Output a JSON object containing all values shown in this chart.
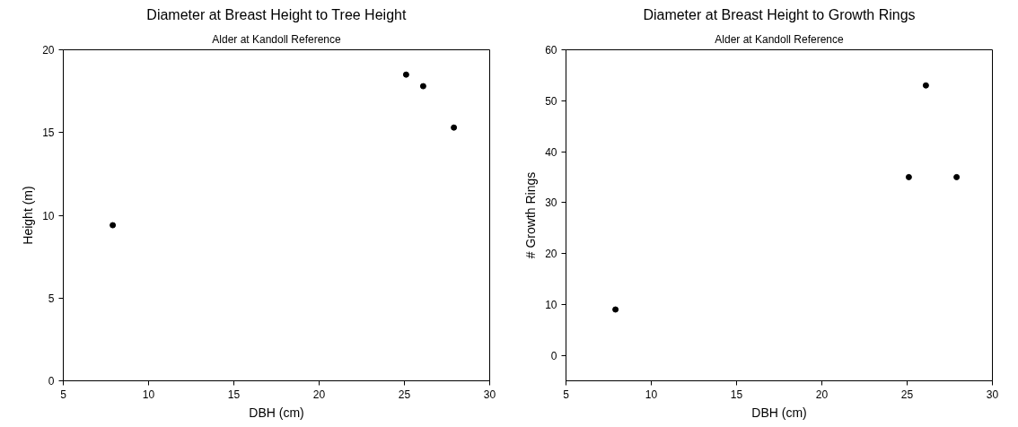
{
  "chart_data": [
    {
      "type": "scatter",
      "title": "Diameter at Breast Height to Tree Height",
      "subtitle": "Alder at Kandoll Reference",
      "xlabel": "DBH (cm)",
      "ylabel": "Height (m)",
      "x": [
        7.9,
        25.1,
        26.1,
        27.9
      ],
      "series": [
        {
          "color": "#000000",
          "values": [
            9.4,
            18.5,
            17.8,
            15.3
          ]
        }
      ],
      "xlim": [
        5,
        30
      ],
      "ylim": [
        0,
        20
      ],
      "xticks": [
        5,
        10,
        15,
        20,
        25,
        30
      ],
      "yticks": [
        0,
        5,
        10,
        15,
        20
      ],
      "marker": "circle",
      "grid": false
    },
    {
      "type": "scatter",
      "title": "Diameter at Breast Height to Growth Rings",
      "subtitle": "Alder at Kandoll Reference",
      "xlabel": "DBH (cm)",
      "ylabel": "# Growth Rings",
      "x": [
        7.9,
        25.1,
        26.1,
        27.9
      ],
      "series": [
        {
          "color": "#000000",
          "values": [
            9,
            35,
            53,
            35
          ]
        }
      ],
      "xlim": [
        5,
        30
      ],
      "ylim": [
        -5,
        60
      ],
      "xticks": [
        5,
        10,
        15,
        20,
        25,
        30
      ],
      "yticks": [
        0,
        10,
        20,
        30,
        40,
        50,
        60
      ],
      "marker": "circle",
      "grid": false
    }
  ]
}
